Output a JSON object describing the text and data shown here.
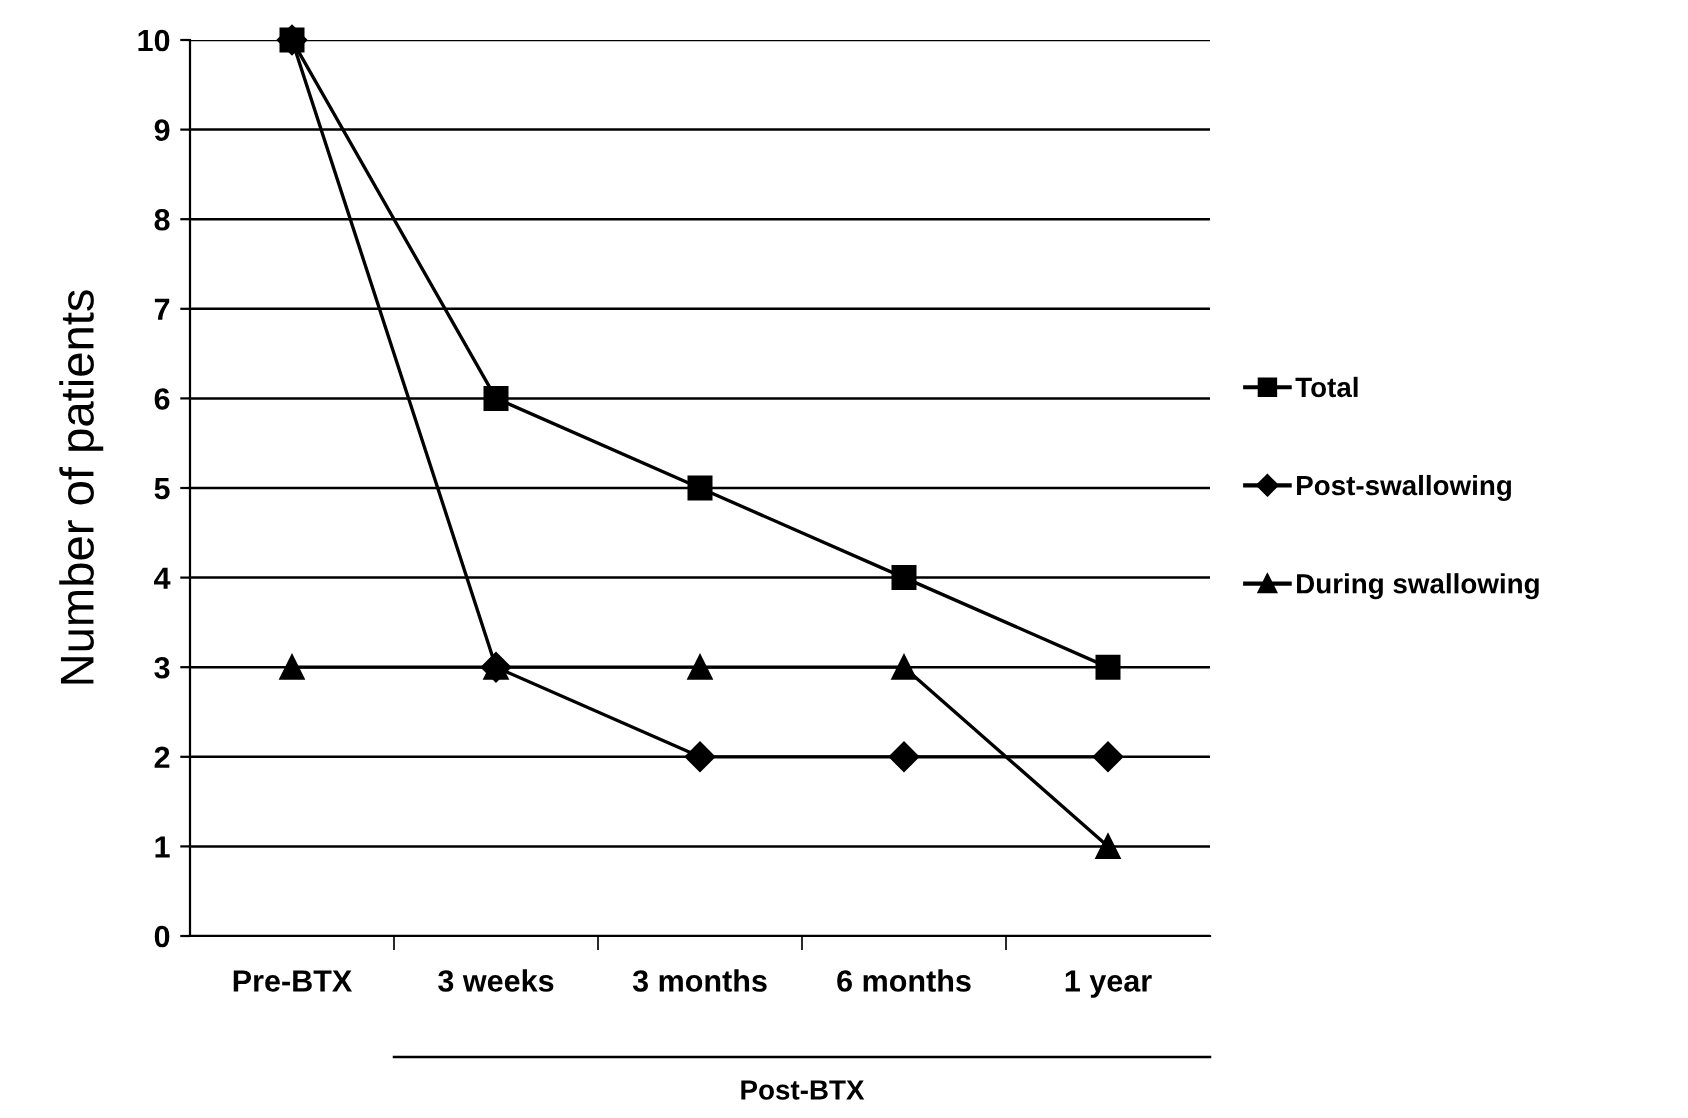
{
  "chart_data": {
    "type": "line",
    "ylabel": "Number of patients",
    "categories": [
      "Pre-BTX",
      "3 weeks",
      "3 months",
      "6 months",
      "1 year"
    ],
    "series": [
      {
        "name": "Total",
        "color": "#000000",
        "marker": "square",
        "values": [
          10,
          6,
          5,
          4,
          3
        ]
      },
      {
        "name": "Post-swallowing",
        "color": "#000000",
        "marker": "diamond",
        "values": [
          10,
          3,
          2,
          2,
          2
        ]
      },
      {
        "name": "During swallowing",
        "color": "#000000",
        "marker": "triangle",
        "values": [
          3,
          3,
          3,
          3,
          1
        ]
      }
    ],
    "ylim": [
      0,
      10
    ],
    "yticks": [
      0,
      1,
      2,
      3,
      4,
      5,
      6,
      7,
      8,
      9,
      10
    ],
    "grid": "y",
    "legend": "right",
    "annotations": [
      "Post-BTX"
    ]
  }
}
